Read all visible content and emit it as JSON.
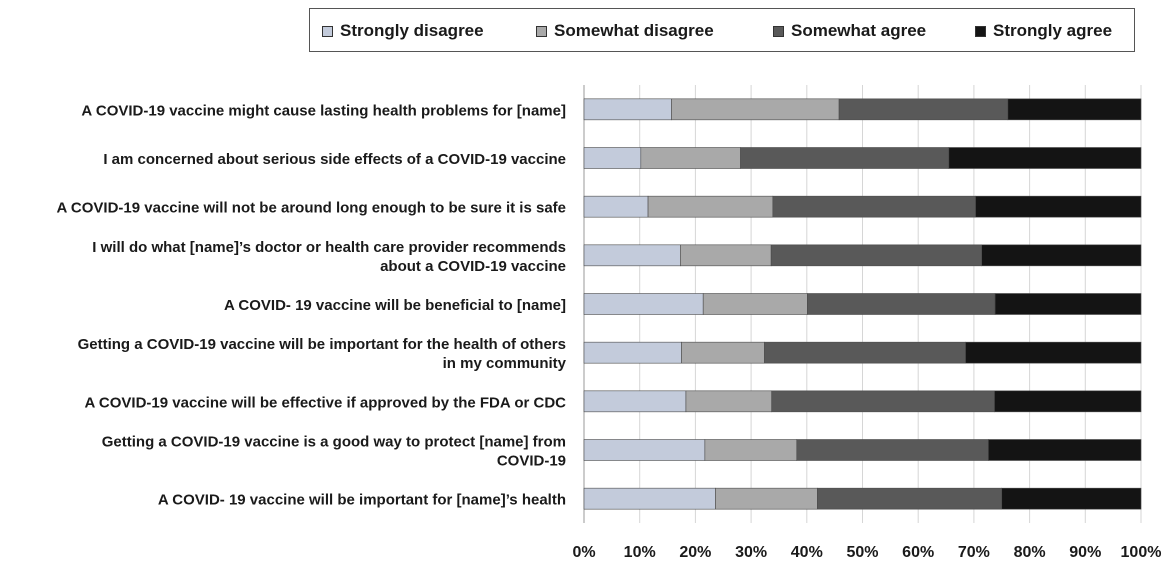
{
  "chart_data": {
    "type": "bar",
    "orientation": "horizontal",
    "stacked": true,
    "title": "",
    "xlabel": "",
    "ylabel": "",
    "xlim": [
      0,
      100
    ],
    "x_ticks": [
      "0%",
      "10%",
      "20%",
      "30%",
      "40%",
      "50%",
      "60%",
      "70%",
      "80%",
      "90%",
      "100%"
    ],
    "grid": "vertical",
    "legend_position": "top",
    "categories": [
      [
        "A COVID-19 vaccine might cause lasting health problems for [name]"
      ],
      [
        "I am concerned about serious side effects of a COVID-19 vaccine"
      ],
      [
        "A COVID-19 vaccine will not be around long enough to be sure it is safe"
      ],
      [
        "I will do what [name]’s doctor or health care provider recommends",
        "about a COVID-19 vaccine"
      ],
      [
        "A COVID- 19 vaccine will be beneficial to [name]"
      ],
      [
        "Getting a COVID-19 vaccine will be important for the health of others",
        "in my community"
      ],
      [
        "A COVID-19 vaccine will be effective if approved by the FDA or CDC"
      ],
      [
        "Getting a COVID-19 vaccine is a good way to protect [name] from",
        "COVID-19"
      ],
      [
        "A COVID- 19 vaccine will be important for [name]’s health"
      ]
    ],
    "series": [
      {
        "name": "Strongly disagree",
        "color": "#c3cbdb",
        "values": [
          15.7,
          10.2,
          11.5,
          17.3,
          21.4,
          17.5,
          18.3,
          21.7,
          23.6
        ]
      },
      {
        "name": "Somewhat disagree",
        "color": "#a9a9a9",
        "values": [
          30.1,
          17.9,
          22.4,
          16.3,
          18.7,
          14.9,
          15.4,
          16.5,
          18.3
        ]
      },
      {
        "name": "Somewhat agree",
        "color": "#595959",
        "values": [
          30.3,
          37.4,
          36.4,
          37.8,
          33.7,
          36.1,
          40.0,
          34.4,
          33.1
        ]
      },
      {
        "name": "Strongly agree",
        "color": "#141414",
        "values": [
          23.9,
          34.5,
          29.7,
          28.6,
          26.2,
          31.5,
          26.3,
          27.4,
          25.0
        ]
      }
    ]
  }
}
